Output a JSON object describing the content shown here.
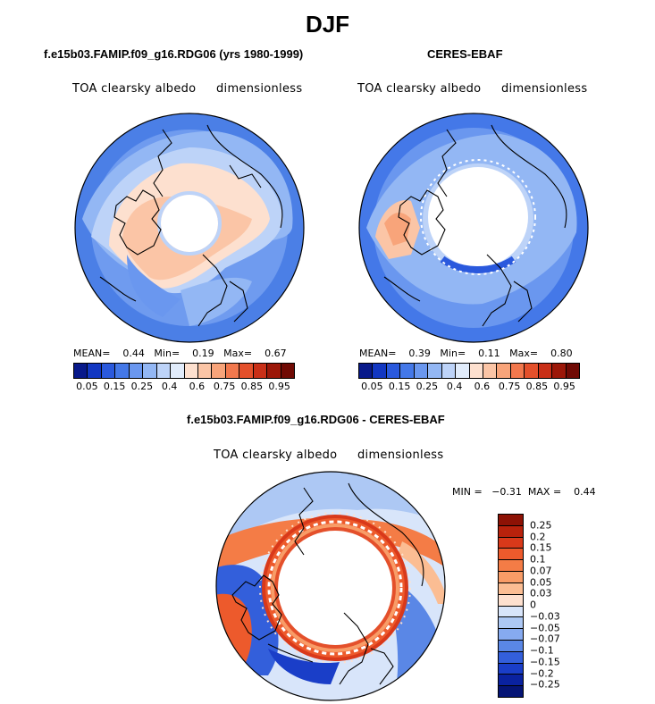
{
  "title": "DJF",
  "panels": {
    "model": {
      "title": "f.e15b03.FAMIP.f09_g16.RDG06 (yrs 1980-1999)",
      "var_label": "TOA clearsky albedo",
      "units": "dimensionless",
      "mean_label": "MEAN=",
      "mean": "0.44",
      "min_label": "Min=",
      "min": "0.19",
      "max_label": "Max=",
      "max": "0.67"
    },
    "obs": {
      "title": "CERES-EBAF",
      "var_label": "TOA clearsky albedo",
      "units": "dimensionless",
      "mean_label": "MEAN=",
      "mean": "0.39",
      "min_label": "Min=",
      "min": "0.11",
      "max_label": "Max=",
      "max": "0.80"
    },
    "diff": {
      "title": "f.e15b03.FAMIP.f09_g16.RDG06 - CERES-EBAF",
      "var_label": "TOA clearsky albedo",
      "units": "dimensionless",
      "min_label": "MIN =",
      "min": "−0.31",
      "max_label": "MAX =",
      "max": "0.44"
    }
  },
  "colorbar_abs": {
    "ticks": [
      "0.05",
      "0.15",
      "0.25",
      "0.4",
      "0.6",
      "0.75",
      "0.85",
      "0.95"
    ],
    "colors": [
      "#08198a",
      "#1237c2",
      "#2a59dd",
      "#4478e8",
      "#6a97ef",
      "#93b7f4",
      "#bdd3f8",
      "#e1ecfb",
      "#fde0cf",
      "#fbc5a6",
      "#f8a47a",
      "#f2784d",
      "#e4502b",
      "#c92f17",
      "#9c1708",
      "#700a04"
    ]
  },
  "colorbar_diff": {
    "ticks": [
      "0.25",
      "0.2",
      "0.15",
      "0.1",
      "0.07",
      "0.05",
      "0.03",
      "0",
      "−0.03",
      "−0.05",
      "−0.07",
      "−0.1",
      "−0.15",
      "−0.2",
      "−0.25"
    ],
    "colors": [
      "#8d1205",
      "#b8220c",
      "#d9391a",
      "#ed5a2c",
      "#f47c46",
      "#f89c67",
      "#fbbd93",
      "#fde0cf",
      "#d8e5fa",
      "#adc8f4",
      "#86aaf0",
      "#5a87e6",
      "#335fdb",
      "#1a3ec8",
      "#0a22a0",
      "#051475"
    ]
  }
}
